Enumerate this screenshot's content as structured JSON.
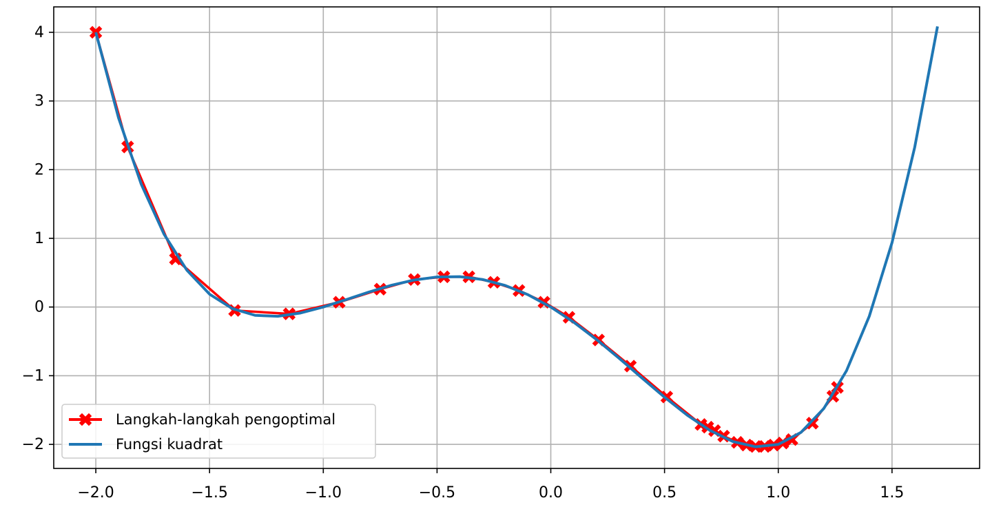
{
  "chart_data": {
    "type": "line",
    "xlim": [
      -2.185,
      1.885
    ],
    "ylim": [
      -2.35,
      4.37
    ],
    "xticks": [
      {
        "value": -2,
        "label": "−2.0"
      },
      {
        "value": -1.5,
        "label": "−1.5"
      },
      {
        "value": -1,
        "label": "−1.0"
      },
      {
        "value": -0.5,
        "label": "−0.5"
      },
      {
        "value": 0,
        "label": "0.0"
      },
      0.5,
      {
        "value": 1,
        "label": "1.0"
      },
      1.5
    ],
    "yticks": [
      {
        "value": -2,
        "label": "−2"
      },
      {
        "value": -1,
        "label": "−1"
      },
      0,
      1,
      2,
      3,
      4
    ],
    "grid": true,
    "legend": "lower left",
    "series": [
      {
        "name": "Langkah-langkah pengoptimal",
        "color": "#ff0000",
        "marker": "X",
        "x": [
          -2,
          -1.86,
          -1.65,
          -1.39,
          -1.15,
          -0.93,
          -0.75,
          -0.6,
          -0.47,
          -0.36,
          -0.25,
          -0.14,
          -0.03,
          0.08,
          0.21,
          0.35,
          0.51,
          0.66,
          0.69,
          0.72,
          0.76,
          0.82,
          0.86,
          0.9,
          0.94,
          0.98,
          1.02,
          1.06,
          1.15,
          1.24,
          1.26
        ],
        "values": [
          4,
          2.33,
          0.7,
          -0.05,
          -0.1,
          0.07,
          0.26,
          0.4,
          0.44,
          0.44,
          0.36,
          0.24,
          0.07,
          -0.15,
          -0.48,
          -0.86,
          -1.31,
          -1.71,
          -1.75,
          -1.8,
          -1.88,
          -1.97,
          -2.01,
          -2.03,
          -2.03,
          -2.01,
          -1.98,
          -1.93,
          -1.69,
          -1.3,
          -1.17
        ]
      },
      {
        "name": "Fungsi kuadrat",
        "color": "#1f77b4",
        "x": [
          -2,
          -1.9,
          -1.8,
          -1.7,
          -1.6,
          -1.5,
          -1.4,
          -1.3,
          -1.2,
          -1.1,
          -1,
          -0.9,
          -0.8,
          -0.7,
          -0.6,
          -0.5,
          -0.4,
          -0.3,
          -0.2,
          -0.1,
          0,
          0.1,
          0.2,
          0.3,
          0.4,
          0.5,
          0.6,
          0.7,
          0.8,
          0.9,
          1,
          1.1,
          1.2,
          1.3,
          1.4,
          1.5,
          1.6,
          1.7
        ],
        "values": [
          4,
          2.7531,
          1.7856,
          1.0591,
          0.5376,
          0.1875,
          -0.0224,
          -0.1209,
          -0.1344,
          -0.0869,
          0,
          0.1071,
          0.2176,
          0.3171,
          0.3936,
          0.4375,
          0.4416,
          0.4011,
          0.3136,
          0.1791,
          0,
          -0.2189,
          -0.4704,
          -0.7449,
          -1.0304,
          -1.3125,
          -1.5744,
          -1.7969,
          -1.9584,
          -2.0349,
          -2,
          -1.8249,
          -1.4784,
          -0.9269,
          -0.1344,
          0.9375,
          2.3296,
          4.0851
        ]
      }
    ]
  }
}
